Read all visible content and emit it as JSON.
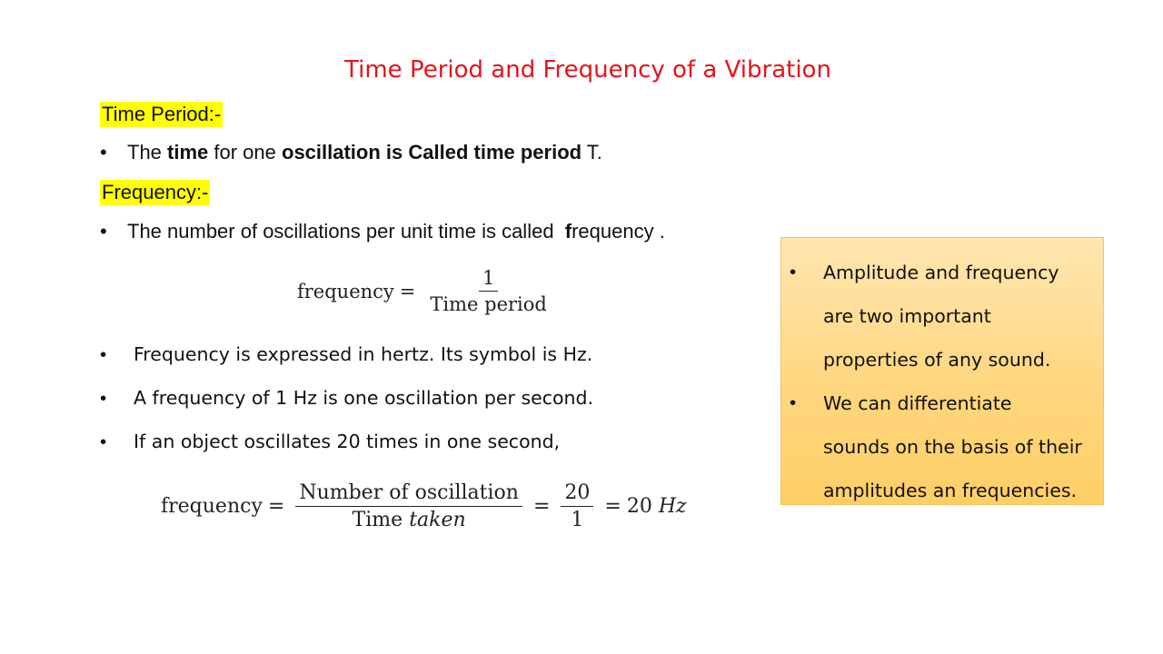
{
  "slide": {
    "title": "Time Period and Frequency of a Vibration",
    "time_period": {
      "heading": "Time Period:-",
      "bullet": {
        "p1": "The ",
        "b1": "time",
        "p2": " for one ",
        "b2": "oscillation is Called time period",
        "p3": " T."
      }
    },
    "frequency": {
      "heading": "Frequency:-",
      "bullet": {
        "p1": "The number of oscillations per unit time is called  ",
        "b1": "f",
        "p2": "requency ."
      },
      "formula1": {
        "lhs": "frequency",
        "eq": "=",
        "numerator": "1",
        "denominator": "Time period"
      },
      "bullets": [
        "Frequency is expressed in hertz. Its symbol is Hz.",
        "A frequency of 1 Hz is one oscillation per second.",
        "If an object oscillates 20 times in one second,"
      ],
      "formula2": {
        "lhs": "frequency",
        "eq": "=",
        "numerator": "Number of oscillation",
        "denominator_prefix": "Time ",
        "denominator_italic": "taken",
        "eq2": "=",
        "numerator2": "20",
        "denominator2": "1",
        "eq3": "=",
        "result_value": "20 ",
        "result_unit": "Hz"
      }
    },
    "side_box": {
      "bullet_symbol": "•",
      "lines": [
        "Amplitude and frequency",
        "are two important",
        "properties of any sound.",
        "We can differentiate",
        "sounds on the basis of their",
        "amplitudes an frequencies."
      ]
    },
    "bullet_symbol": "•",
    "colors": {
      "title": "#e3141b",
      "heading_highlight": "#ffff00",
      "box_fill": "#ffd780",
      "box_border": "#f2c45c"
    }
  }
}
